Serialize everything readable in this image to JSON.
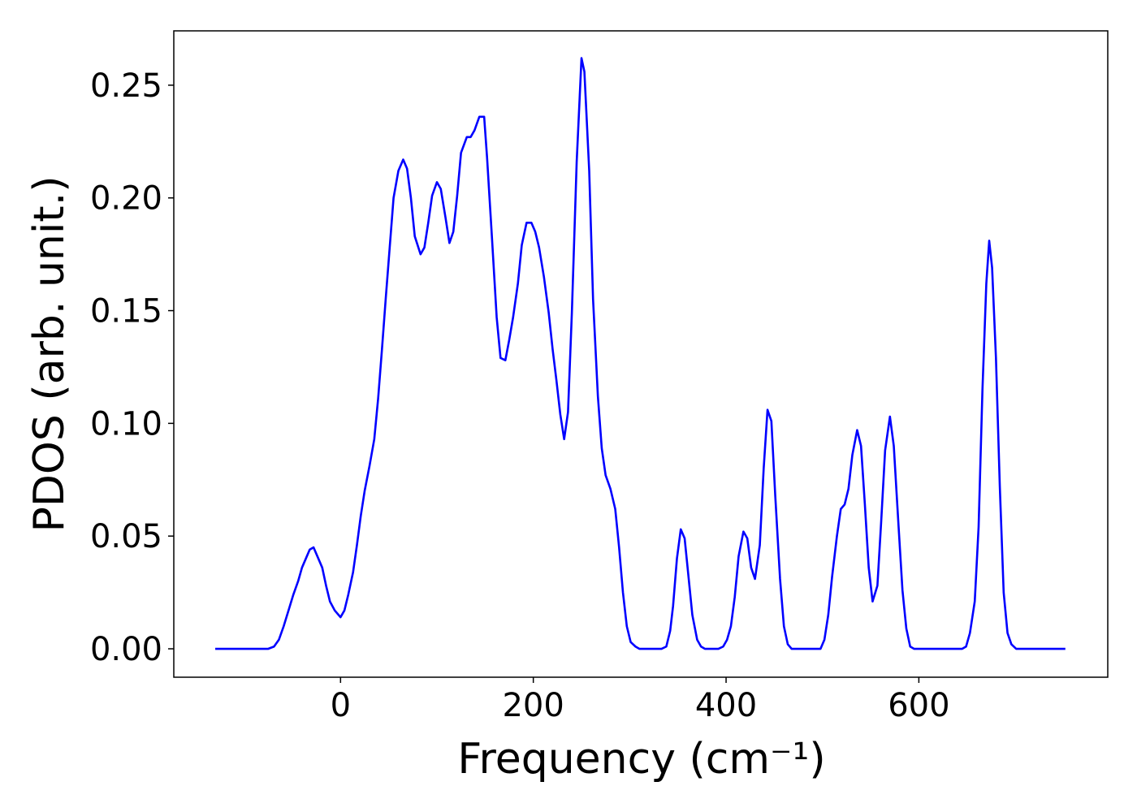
{
  "chart_data": {
    "type": "line",
    "xlabel": "Frequency (cm⁻¹)",
    "ylabel": "PDOS (arb. unit.)",
    "xlim": [
      -173,
      796
    ],
    "ylim": [
      -0.0126,
      0.2741
    ],
    "xticks": [
      0,
      200,
      400,
      600
    ],
    "yticks": [
      {
        "value": 0,
        "label": "0.00"
      },
      {
        "value": 0.05,
        "label": "0.05"
      },
      {
        "value": 0.1,
        "label": "0.10"
      },
      {
        "value": 0.15,
        "label": "0.15"
      },
      {
        "value": 0.2,
        "label": "0.20"
      },
      {
        "value": 0.25,
        "label": "0.25"
      }
    ],
    "grid": false,
    "series": [
      {
        "color": "#0000ff",
        "x": [
          -130,
          -75,
          -69,
          -64,
          -59,
          -54,
          -49,
          -44,
          -40,
          -35,
          -32,
          -28,
          -24,
          -19,
          -15,
          -11,
          -6,
          0,
          4,
          8,
          13,
          17,
          21,
          25,
          30,
          35,
          39,
          43,
          47,
          51,
          55,
          60,
          65,
          69,
          73,
          77,
          83,
          87,
          91,
          95,
          100,
          104,
          109,
          113,
          117,
          121,
          125,
          131,
          135,
          139,
          144,
          149,
          152,
          157,
          162,
          166,
          171,
          175,
          179,
          184,
          188,
          193,
          198,
          202,
          206,
          211,
          216,
          220,
          224,
          228,
          232,
          236,
          240,
          245,
          250,
          253,
          258,
          262,
          267,
          271,
          275,
          280,
          285,
          289,
          293,
          297,
          301,
          306,
          310,
          333,
          338,
          342,
          345,
          349,
          353,
          357,
          361,
          365,
          370,
          374,
          378,
          392,
          397,
          401,
          405,
          409,
          413,
          418,
          422,
          426,
          430,
          435,
          439,
          443,
          447,
          451,
          456,
          460,
          464,
          468,
          489,
          498,
          502,
          506,
          510,
          515,
          519,
          523,
          527,
          531,
          536,
          540,
          544,
          548,
          552,
          557,
          561,
          565,
          570,
          574,
          579,
          583,
          587,
          591,
          595,
          600,
          645,
          649,
          653,
          658,
          662,
          666,
          670,
          673,
          676,
          680,
          684,
          688,
          692,
          696,
          701,
          708,
          752
        ],
        "values": [
          0,
          0,
          0.001,
          0.004,
          0.01,
          0.017,
          0.024,
          0.03,
          0.036,
          0.041,
          0.044,
          0.045,
          0.041,
          0.036,
          0.028,
          0.021,
          0.017,
          0.014,
          0.017,
          0.024,
          0.034,
          0.046,
          0.059,
          0.07,
          0.081,
          0.093,
          0.111,
          0.133,
          0.156,
          0.178,
          0.2,
          0.212,
          0.217,
          0.213,
          0.2,
          0.183,
          0.175,
          0.178,
          0.189,
          0.201,
          0.207,
          0.204,
          0.191,
          0.18,
          0.185,
          0.201,
          0.22,
          0.227,
          0.227,
          0.23,
          0.236,
          0.236,
          0.218,
          0.183,
          0.147,
          0.129,
          0.128,
          0.137,
          0.147,
          0.162,
          0.179,
          0.189,
          0.189,
          0.185,
          0.178,
          0.165,
          0.149,
          0.133,
          0.119,
          0.104,
          0.093,
          0.105,
          0.149,
          0.216,
          0.262,
          0.256,
          0.212,
          0.155,
          0.112,
          0.089,
          0.077,
          0.071,
          0.062,
          0.045,
          0.025,
          0.01,
          0.003,
          0.001,
          0,
          0,
          0.001,
          0.008,
          0.019,
          0.04,
          0.053,
          0.049,
          0.032,
          0.015,
          0.004,
          0.001,
          0,
          0,
          0.001,
          0.004,
          0.01,
          0.023,
          0.041,
          0.052,
          0.049,
          0.036,
          0.031,
          0.046,
          0.08,
          0.106,
          0.101,
          0.068,
          0.031,
          0.01,
          0.002,
          0,
          0,
          0,
          0.004,
          0.015,
          0.032,
          0.05,
          0.062,
          0.064,
          0.071,
          0.086,
          0.097,
          0.09,
          0.064,
          0.036,
          0.021,
          0.028,
          0.057,
          0.088,
          0.103,
          0.09,
          0.054,
          0.026,
          0.009,
          0.001,
          0,
          0,
          0,
          0.001,
          0.007,
          0.021,
          0.054,
          0.115,
          0.162,
          0.181,
          0.169,
          0.129,
          0.072,
          0.025,
          0.007,
          0.002,
          0,
          0,
          0
        ]
      }
    ]
  }
}
